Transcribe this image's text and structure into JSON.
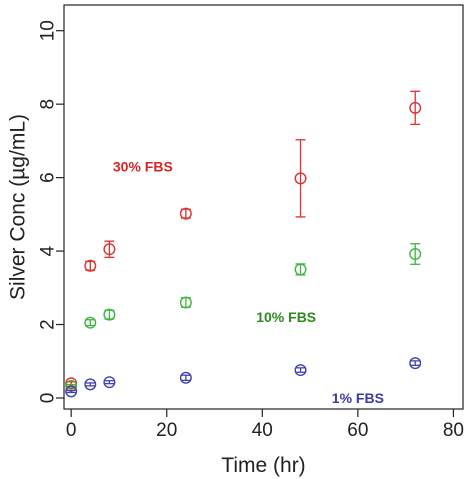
{
  "chart_data": {
    "type": "scatter",
    "xlabel": "Time (hr)",
    "ylabel": "Silver Conc (µg/mL)",
    "xlim": [
      -1.5,
      82
    ],
    "ylim": [
      -0.3,
      10.7
    ],
    "x_ticks": [
      0,
      20,
      40,
      60,
      80
    ],
    "y_ticks": [
      0,
      2,
      4,
      6,
      8,
      10
    ],
    "grid": false,
    "legend": "none",
    "annotations": [
      {
        "text": "30% FBS",
        "series": "30% FBS",
        "x": 15,
        "y": 6.3
      },
      {
        "text": "10% FBS",
        "series": "10% FBS",
        "x": 45,
        "y": 2.2
      },
      {
        "text": "1% FBS",
        "series": "1% FBS",
        "x": 60,
        "y": 0.0
      }
    ],
    "series": [
      {
        "name": "30% FBS",
        "color": "#e03030",
        "points": [
          {
            "x": 0,
            "y": 0.4,
            "err": 0.04
          },
          {
            "x": 4,
            "y": 3.6,
            "err": 0.12
          },
          {
            "x": 8,
            "y": 4.05,
            "err": 0.22
          },
          {
            "x": 24,
            "y": 5.02,
            "err": 0.12
          },
          {
            "x": 48,
            "y": 5.98,
            "err": 1.05
          },
          {
            "x": 72,
            "y": 7.9,
            "err": 0.45
          }
        ]
      },
      {
        "name": "10% FBS",
        "color": "#3fb43f",
        "points": [
          {
            "x": 0,
            "y": 0.33,
            "err": 0.03
          },
          {
            "x": 4,
            "y": 2.05,
            "err": 0.08
          },
          {
            "x": 8,
            "y": 2.27,
            "err": 0.12
          },
          {
            "x": 24,
            "y": 2.6,
            "err": 0.13
          },
          {
            "x": 48,
            "y": 3.5,
            "err": 0.15
          },
          {
            "x": 72,
            "y": 3.92,
            "err": 0.28
          }
        ]
      },
      {
        "name": "1% FBS",
        "color": "#4040b0",
        "points": [
          {
            "x": 0,
            "y": 0.18,
            "err": 0.03
          },
          {
            "x": 4,
            "y": 0.37,
            "err": 0.04
          },
          {
            "x": 8,
            "y": 0.43,
            "err": 0.04
          },
          {
            "x": 24,
            "y": 0.55,
            "err": 0.07
          },
          {
            "x": 48,
            "y": 0.76,
            "err": 0.06
          },
          {
            "x": 72,
            "y": 0.95,
            "err": 0.06
          }
        ]
      }
    ]
  }
}
